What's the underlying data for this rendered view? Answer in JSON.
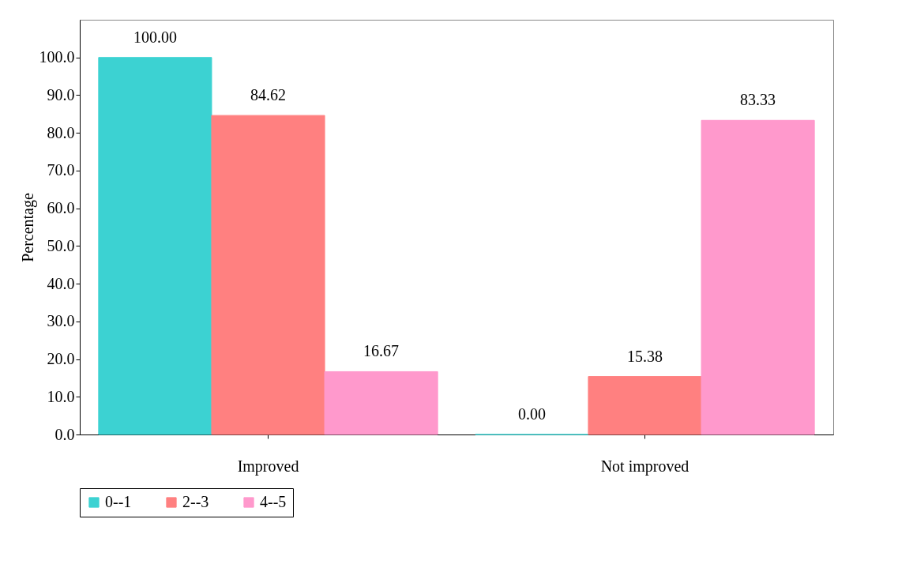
{
  "chart_data": {
    "type": "bar",
    "ylabel": "Percentage",
    "categories": [
      "Improved",
      "Not improved"
    ],
    "series": [
      {
        "name": "0--1",
        "color": "#3cd2d2",
        "values": [
          100.0,
          0.0
        ],
        "value_labels": [
          "100.00",
          "0.00"
        ]
      },
      {
        "name": "2--3",
        "color": "#ff8080",
        "values": [
          84.62,
          15.38
        ],
        "value_labels": [
          "84.62",
          "15.38"
        ]
      },
      {
        "name": "4--5",
        "color": "#ff99cc",
        "values": [
          16.67,
          83.33
        ],
        "value_labels": [
          "16.67",
          "83.33"
        ]
      }
    ],
    "ylim": [
      0,
      110
    ],
    "yticks": [
      {
        "value": 0,
        "label": "0.0"
      },
      {
        "value": 10,
        "label": "10.0"
      },
      {
        "value": 20,
        "label": "20.0"
      },
      {
        "value": 30,
        "label": "30.0"
      },
      {
        "value": 40,
        "label": "40.0"
      },
      {
        "value": 50,
        "label": "50.0"
      },
      {
        "value": 60,
        "label": "60.0"
      },
      {
        "value": 70,
        "label": "70.0"
      },
      {
        "value": 80,
        "label": "80.0"
      },
      {
        "value": 90,
        "label": "90.0"
      },
      {
        "value": 100,
        "label": "100.0"
      }
    ],
    "legend": "bottom",
    "grid": false
  }
}
